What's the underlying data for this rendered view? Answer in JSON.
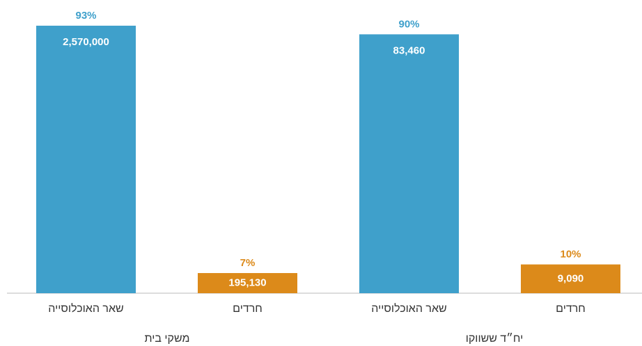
{
  "chart_data": {
    "type": "bar",
    "categories": [
      "שאר האוכלוסייה",
      "חרדים",
      "שאר האוכלוסייה",
      "חרדים"
    ],
    "groups": [
      "משקי בית",
      "יח״ד ששווקו"
    ],
    "values": [
      93,
      7,
      90,
      10
    ],
    "value_labels": [
      "93%",
      "7%",
      "90%",
      "10%"
    ],
    "count_labels": [
      "2,570,000",
      "195,130",
      "83,460",
      "9,090"
    ],
    "colors": [
      "#3fa0cb",
      "#dc8a1a",
      "#3fa0cb",
      "#dc8a1a"
    ],
    "ylim": [
      0,
      100
    ]
  }
}
